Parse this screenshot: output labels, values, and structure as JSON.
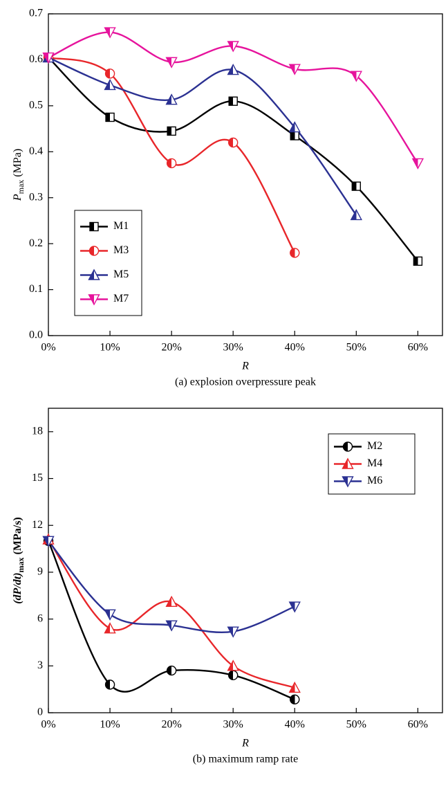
{
  "chart_data": [
    {
      "type": "line",
      "ylabel": [
        "P",
        "max",
        " (MPa)"
      ],
      "xlabel": "R",
      "caption": "(a) explosion overpressure peak",
      "xlim": [
        0,
        64
      ],
      "ylim": [
        0,
        0.7
      ],
      "xticks": [
        {
          "value": 0,
          "label": "0%"
        },
        {
          "value": 10,
          "label": "10%"
        },
        {
          "value": 20,
          "label": "20%"
        },
        {
          "value": 30,
          "label": "30%"
        },
        {
          "value": 40,
          "label": "40%"
        },
        {
          "value": 50,
          "label": "50%"
        },
        {
          "value": 60,
          "label": "60%"
        }
      ],
      "yticks": [
        {
          "value": 0,
          "label": "0.0"
        },
        0.1,
        0.2,
        0.3,
        0.4,
        0.5,
        0.6,
        0.7
      ],
      "legend": "lower left",
      "series": [
        {
          "name": "M1",
          "color": "#000000",
          "marker": "square",
          "x": [
            0,
            10,
            20,
            30,
            40,
            50,
            60
          ],
          "values": [
            0.605,
            0.475,
            0.445,
            0.51,
            0.435,
            0.325,
            0.162
          ]
        },
        {
          "name": "M3",
          "color": "#e8262a",
          "marker": "circle",
          "x": [
            0,
            10,
            20,
            30,
            40
          ],
          "values": [
            0.605,
            0.57,
            0.375,
            0.42,
            0.18
          ]
        },
        {
          "name": "M5",
          "color": "#2b3192",
          "marker": "triangle-up",
          "x": [
            0,
            10,
            20,
            30,
            40,
            50
          ],
          "values": [
            0.605,
            0.545,
            0.513,
            0.578,
            0.453,
            0.262
          ]
        },
        {
          "name": "M7",
          "color": "#e6139c",
          "marker": "triangle-down",
          "x": [
            0,
            10,
            20,
            30,
            40,
            50,
            60
          ],
          "values": [
            0.605,
            0.66,
            0.595,
            0.63,
            0.58,
            0.565,
            0.375
          ]
        }
      ]
    },
    {
      "type": "line",
      "ylabel": [
        "(dP/dt)",
        "max",
        " (MPa/s)"
      ],
      "xlabel": "R",
      "caption": "(b) maximum ramp rate",
      "xlim": [
        0,
        64
      ],
      "ylim": [
        0,
        19.5
      ],
      "xticks": [
        {
          "value": 0,
          "label": "0%"
        },
        {
          "value": 10,
          "label": "10%"
        },
        {
          "value": 20,
          "label": "20%"
        },
        {
          "value": 30,
          "label": "30%"
        },
        {
          "value": 40,
          "label": "40%"
        },
        {
          "value": 50,
          "label": "50%"
        },
        {
          "value": 60,
          "label": "60%"
        }
      ],
      "yticks": [
        0,
        3,
        6,
        9,
        12,
        15,
        18
      ],
      "legend": "upper right",
      "series": [
        {
          "name": "M2",
          "color": "#000000",
          "marker": "circle",
          "x": [
            0,
            10,
            20,
            30,
            40
          ],
          "values": [
            11,
            1.8,
            2.7,
            2.4,
            0.85
          ]
        },
        {
          "name": "M4",
          "color": "#e8262a",
          "marker": "triangle-up",
          "x": [
            0,
            10,
            20,
            30,
            40
          ],
          "values": [
            11.1,
            5.4,
            7.1,
            3,
            1.6
          ]
        },
        {
          "name": "M6",
          "color": "#2b3192",
          "marker": "triangle-down",
          "x": [
            0,
            10,
            20,
            30,
            40
          ],
          "values": [
            11,
            6.3,
            5.6,
            5.2,
            6.8
          ]
        }
      ]
    }
  ]
}
